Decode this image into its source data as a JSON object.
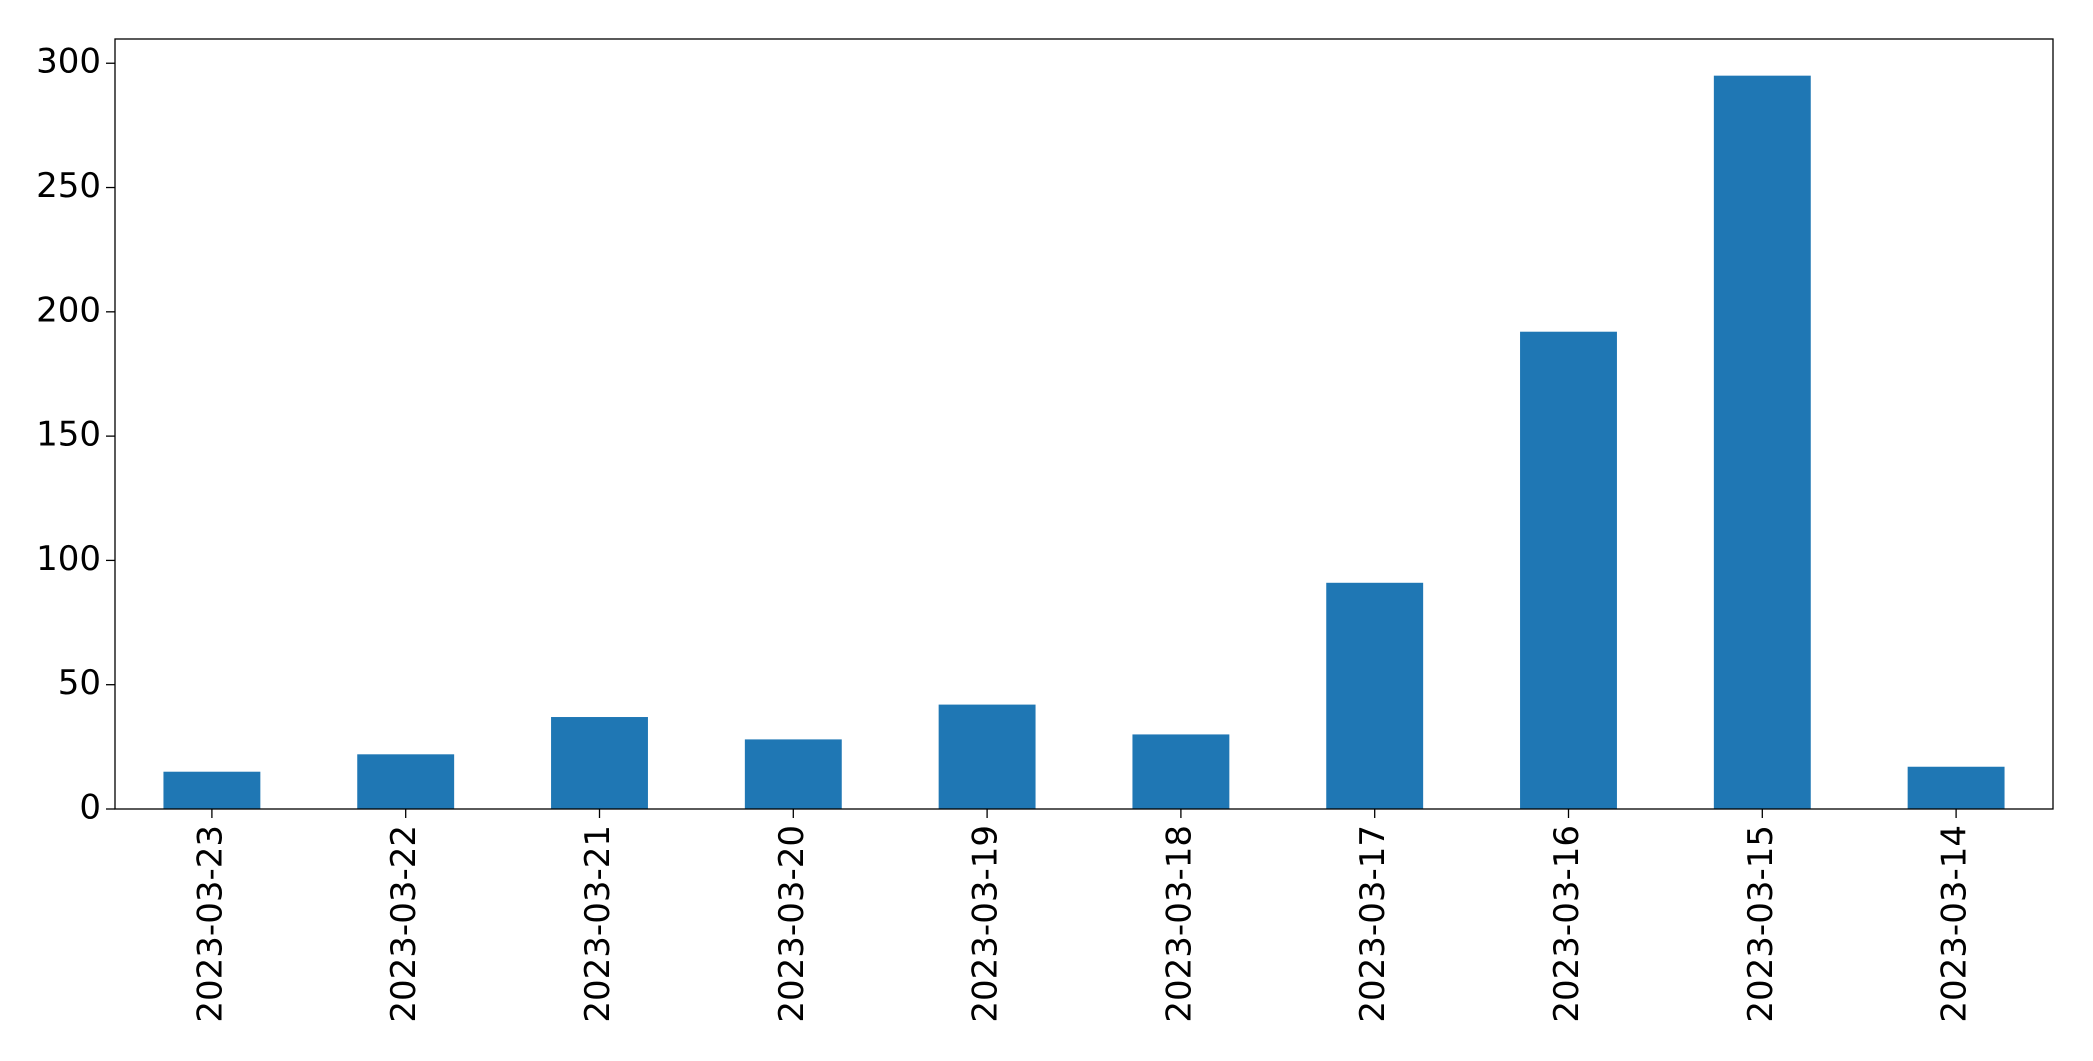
{
  "chart_data": {
    "type": "bar",
    "categories": [
      "2023-03-23",
      "2023-03-22",
      "2023-03-21",
      "2023-03-20",
      "2023-03-19",
      "2023-03-18",
      "2023-03-17",
      "2023-03-16",
      "2023-03-15",
      "2023-03-14"
    ],
    "values": [
      15,
      22,
      37,
      28,
      42,
      30,
      91,
      192,
      295,
      17
    ],
    "color": "#1f77b4",
    "ylim": [
      0,
      309.75
    ],
    "yticks": [
      0,
      50,
      100,
      150,
      200,
      250,
      300
    ],
    "grid": false
  }
}
